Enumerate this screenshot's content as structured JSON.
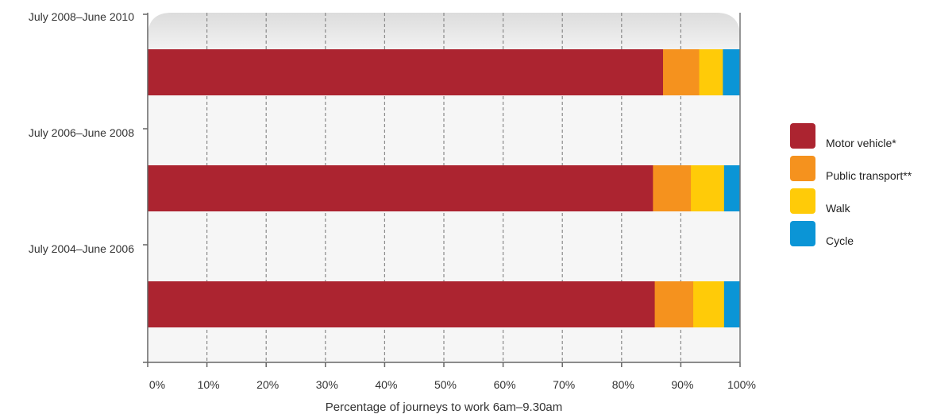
{
  "chart_data": {
    "type": "bar",
    "orientation": "horizontal",
    "stacked": true,
    "title": "",
    "xlabel": "Percentage of journeys to work 6am–9.30am",
    "ylabel": "",
    "xlim": [
      0,
      100
    ],
    "x_ticks": [
      "0%",
      "10%",
      "20%",
      "30%",
      "40%",
      "50%",
      "60%",
      "70%",
      "80%",
      "90%",
      "100%"
    ],
    "grid": "vertical dashed",
    "legend_position": "right",
    "categories": [
      "July 2008–June 2010",
      "July 2006–June 2008",
      "July 2004–June 2006"
    ],
    "series": [
      {
        "name": "Motor vehicle*",
        "color": "#ac2430",
        "values": [
          87.0,
          85.3,
          85.6
        ]
      },
      {
        "name": "Public transport**",
        "color": "#f5921e",
        "values": [
          6.1,
          6.4,
          6.5
        ]
      },
      {
        "name": "Walk",
        "color": "#ffcb08",
        "values": [
          4.0,
          5.6,
          5.2
        ]
      },
      {
        "name": "Cycle",
        "color": "#0b95d6",
        "values": [
          2.9,
          2.7,
          2.7
        ]
      }
    ]
  }
}
